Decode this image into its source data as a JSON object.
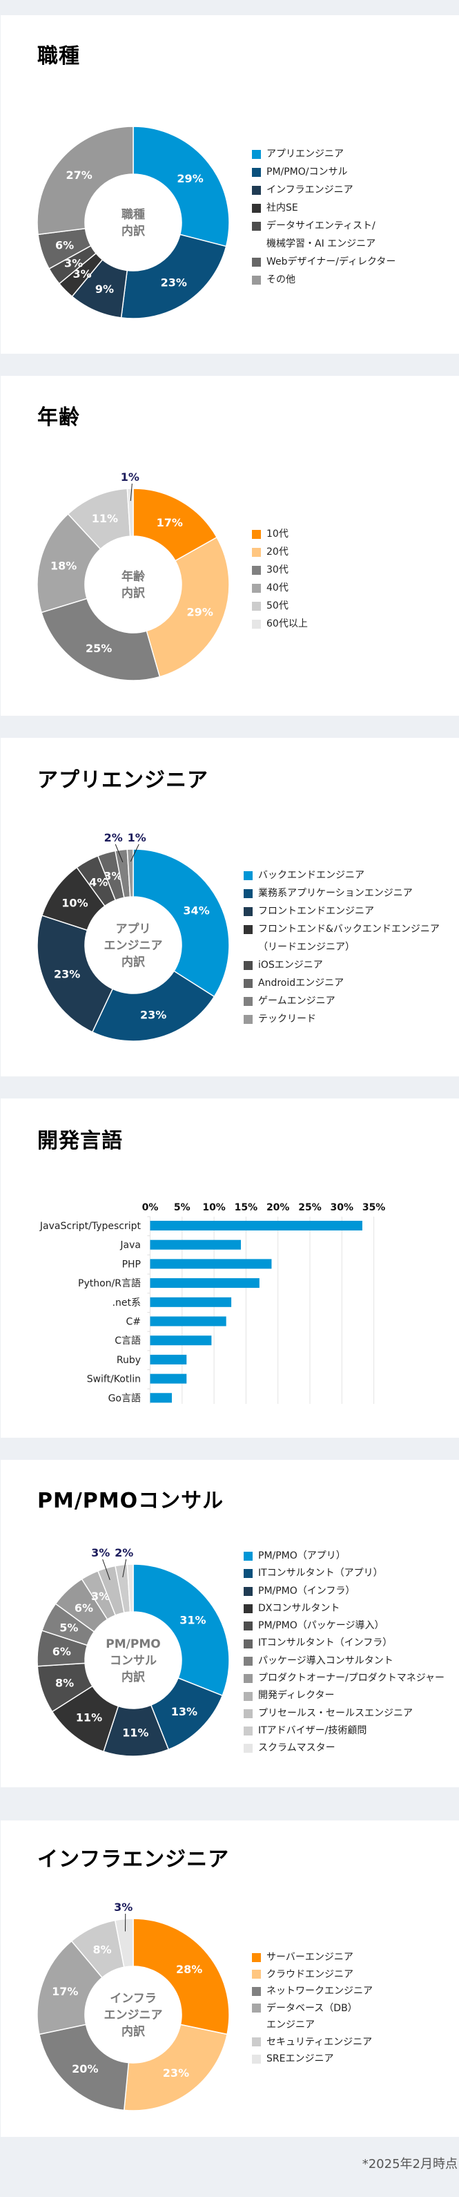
{
  "footnote": "*2025年2月時点",
  "chart_data": [
    {
      "type": "pie",
      "title": "職種",
      "center_label": [
        "職種",
        "内訳"
      ],
      "slices": [
        {
          "name": "アプリエンジニア",
          "value": 29,
          "label": "29%",
          "color": "#0096d6"
        },
        {
          "name": "PM/PMO/コンサル",
          "value": 23,
          "label": "23%",
          "color": "#0a507c"
        },
        {
          "name": "インフラエンジニア",
          "value": 9,
          "label": "9%",
          "color": "#1f3b53"
        },
        {
          "name": "社内SE",
          "value": 3,
          "label": "3%",
          "color": "#333333"
        },
        {
          "name": "データサイエンティスト/\n機械学習・AI エンジニア",
          "value": 3,
          "label": "3%",
          "color": "#4d4d4d"
        },
        {
          "name": "Webデザイナー/ディレクター",
          "value": 6,
          "label": "6%",
          "color": "#666666"
        },
        {
          "name": "その他",
          "value": 27,
          "label": "27%",
          "color": "#999999"
        }
      ]
    },
    {
      "type": "pie",
      "title": "年齢",
      "center_label": [
        "年齢",
        "内訳"
      ],
      "slices": [
        {
          "name": "10代",
          "value": 17,
          "label": "17%",
          "color": "#ff8c00"
        },
        {
          "name": "20代",
          "value": 29,
          "label": "29%",
          "color": "#ffc680"
        },
        {
          "name": "30代",
          "value": 25,
          "label": "25%",
          "color": "#808080"
        },
        {
          "name": "40代",
          "value": 18,
          "label": "18%",
          "color": "#a6a6a6"
        },
        {
          "name": "50代",
          "value": 11,
          "label": "11%",
          "color": "#cccccc"
        },
        {
          "name": "60代以上",
          "value": 1,
          "label": "1%",
          "color": "#e6e6e6",
          "callout": true
        }
      ]
    },
    {
      "type": "pie",
      "title": "アプリエンジニア",
      "center_label": [
        "アプリ",
        "エンジニア",
        "内訳"
      ],
      "slices": [
        {
          "name": "バックエンドエンジニア",
          "value": 34,
          "label": "34%",
          "color": "#0096d6"
        },
        {
          "name": "業務系アプリケーションエンジニア",
          "value": 23,
          "label": "23%",
          "color": "#0a507c"
        },
        {
          "name": "フロントエンドエンジニア",
          "value": 23,
          "label": "23%",
          "color": "#1f3b53"
        },
        {
          "name": "フロントエンド&バックエンドエンジニア\n（リードエンジニア）",
          "value": 10,
          "label": "10%",
          "color": "#333333"
        },
        {
          "name": "iOSエンジニア",
          "value": 4,
          "label": "4%",
          "color": "#4d4d4d"
        },
        {
          "name": "Androidエンジニア",
          "value": 3,
          "label": "3%",
          "color": "#666666"
        },
        {
          "name": "ゲームエンジニア",
          "value": 2,
          "label": "2%",
          "color": "#808080",
          "callout": true
        },
        {
          "name": "テックリード",
          "value": 1,
          "label": "1%",
          "color": "#999999",
          "callout": true
        }
      ]
    },
    {
      "type": "bar",
      "orientation": "horizontal",
      "title": "開発言語",
      "categories": [
        "JavaScript/Typescript",
        "Java",
        "PHP",
        "Python/R言語",
        ".net系",
        "C#",
        "C言語",
        "Ruby",
        "Swift/Kotlin",
        "Go言語"
      ],
      "values": [
        33.2,
        14.2,
        19.0,
        17.1,
        12.7,
        11.9,
        9.6,
        5.7,
        5.7,
        3.4
      ],
      "xlim": [
        0,
        35
      ],
      "xticks": [
        "0%",
        "5%",
        "10%",
        "15%",
        "20%",
        "25%",
        "30%",
        "35%"
      ],
      "xaxis_position": "top",
      "grid": true,
      "color": "#0096d6"
    },
    {
      "type": "pie",
      "title": "PM/PMOコンサル",
      "center_label": [
        "PM/PMO",
        "コンサル",
        "内訳"
      ],
      "slices": [
        {
          "name": "PM/PMO（アプリ）",
          "value": 31,
          "label": "31%",
          "color": "#0096d6"
        },
        {
          "name": "ITコンサルタント（アプリ）",
          "value": 13,
          "label": "13%",
          "color": "#0a507c"
        },
        {
          "name": "PM/PMO（インフラ）",
          "value": 11,
          "label": "11%",
          "color": "#1f3b53"
        },
        {
          "name": "DXコンサルタント",
          "value": 11,
          "label": "11%",
          "color": "#333333"
        },
        {
          "name": "PM/PMO（パッケージ導入）",
          "value": 8,
          "label": "8%",
          "color": "#4d4d4d"
        },
        {
          "name": "ITコンサルタント（インフラ）",
          "value": 6,
          "label": "6%",
          "color": "#666666"
        },
        {
          "name": "パッケージ導入コンサルタント",
          "value": 5,
          "label": "5%",
          "color": "#808080"
        },
        {
          "name": "プロダクトオーナー/プロダクトマネジャー",
          "value": 6,
          "label": "6%",
          "color": "#999999"
        },
        {
          "name": "開発ディレクター",
          "value": 3,
          "label": "3%",
          "color": "#b3b3b3"
        },
        {
          "name": "プリセールス・セールスエンジニア",
          "value": 3,
          "label": "3%",
          "color": "#c0c0c0",
          "callout": true
        },
        {
          "name": "ITアドバイザー/技術顧問",
          "value": 2,
          "label": "2%",
          "color": "#cccccc",
          "callout": true
        },
        {
          "name": "スクラムマスター",
          "value": 1,
          "label": "",
          "color": "#e6e6e6"
        }
      ]
    },
    {
      "type": "pie",
      "title": "インフラエンジニア",
      "center_label": [
        "インフラ",
        "エンジニア",
        "内訳"
      ],
      "slices": [
        {
          "name": "サーバーエンジニア",
          "value": 28,
          "label": "28%",
          "color": "#ff8c00"
        },
        {
          "name": "クラウドエンジニア",
          "value": 23,
          "label": "23%",
          "color": "#ffc680"
        },
        {
          "name": "ネットワークエンジニア",
          "value": 20,
          "label": "20%",
          "color": "#808080"
        },
        {
          "name": "データベース（DB）\nエンジニア",
          "value": 17,
          "label": "17%",
          "color": "#a6a6a6"
        },
        {
          "name": "セキュリティエンジニア",
          "value": 8,
          "label": "8%",
          "color": "#cccccc"
        },
        {
          "name": "SREエンジニア",
          "value": 3,
          "label": "3%",
          "color": "#e6e6e6",
          "callout": true
        }
      ]
    }
  ]
}
